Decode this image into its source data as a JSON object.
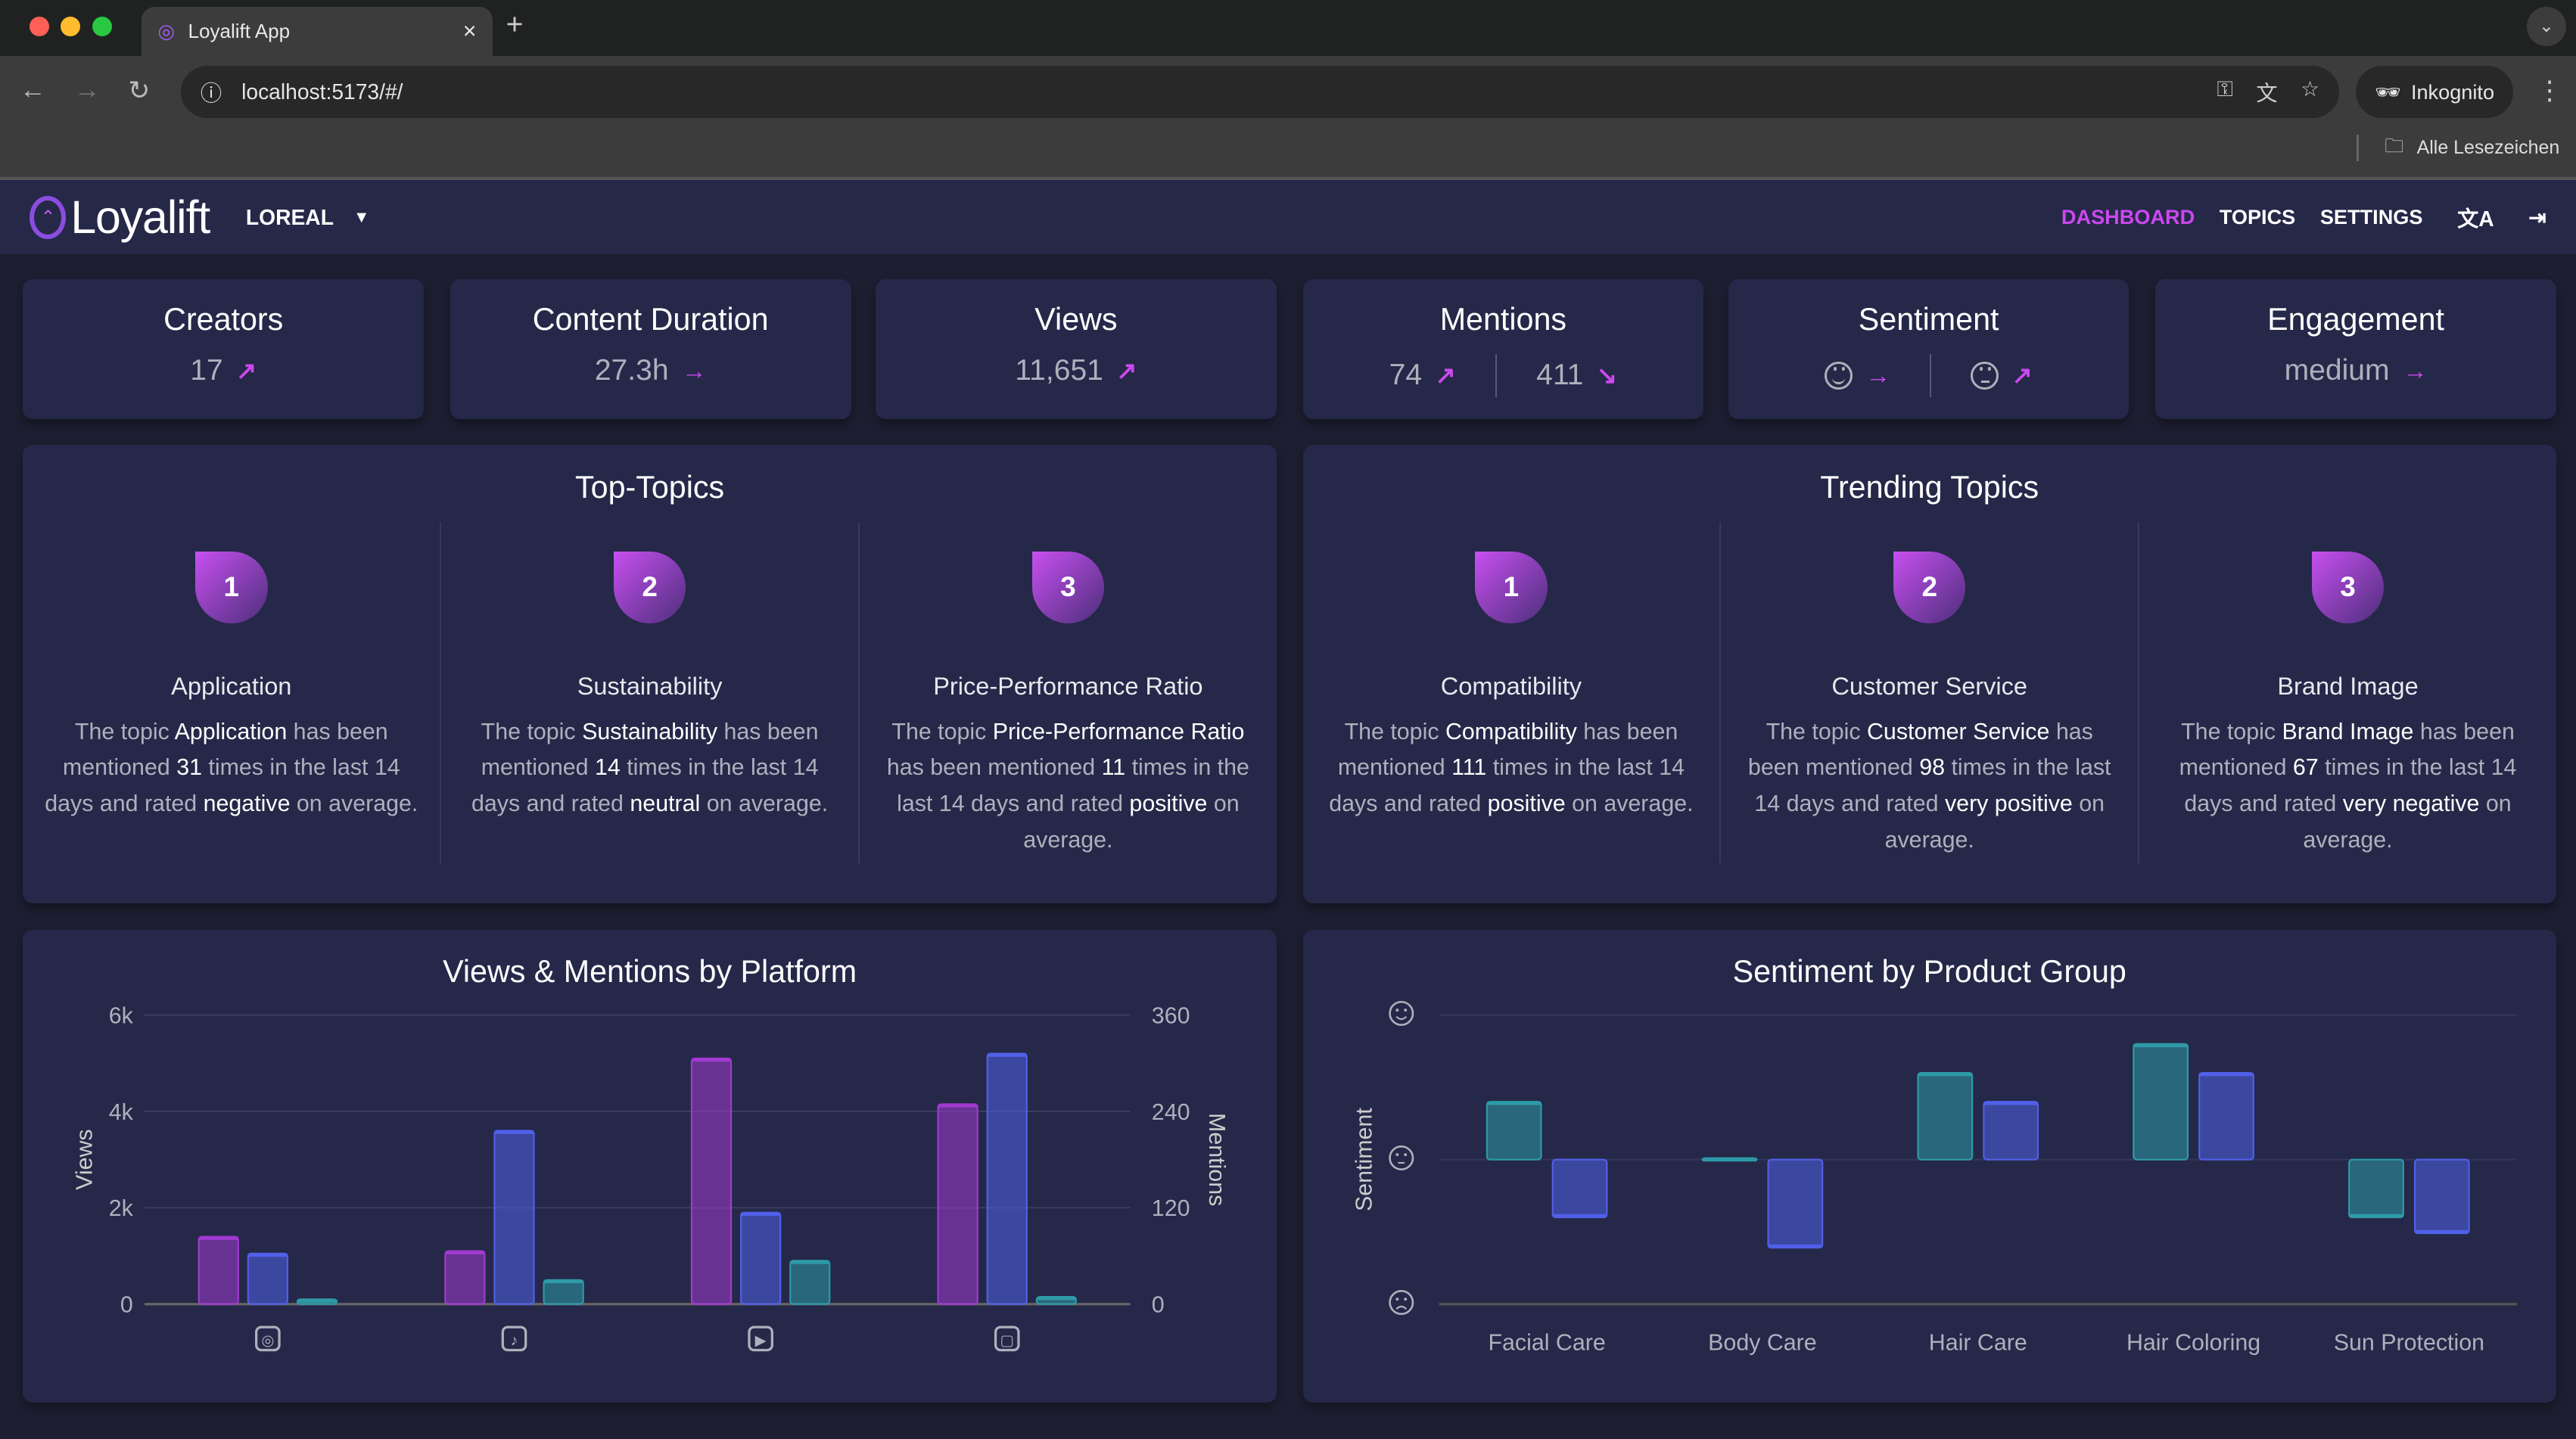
{
  "browser": {
    "tab_title": "Loyalift App",
    "url": "localhost:5173/#/",
    "incognito_label": "Inkognito",
    "bookmarks_label": "Alle Lesezeichen"
  },
  "app": {
    "logo_text": "Loyalift",
    "brand": "LOREAL",
    "nav": [
      {
        "label": "DASHBOARD",
        "active": true
      },
      {
        "label": "TOPICS",
        "active": false
      },
      {
        "label": "SETTINGS",
        "active": false
      }
    ],
    "accent_color": "#cc48ef"
  },
  "stats": {
    "creators": {
      "title": "Creators",
      "value": "17",
      "trend": "up"
    },
    "duration": {
      "title": "Content Duration",
      "value": "27.3h",
      "trend": "flat"
    },
    "views": {
      "title": "Views",
      "value": "11,651",
      "trend": "up"
    },
    "mentions": {
      "title": "Mentions",
      "value_a": "74",
      "trend_a": "up",
      "value_b": "411",
      "trend_b": "down"
    },
    "sentiment": {
      "title": "Sentiment",
      "face_a": "happy",
      "trend_a": "flat",
      "face_b": "neutral",
      "trend_b": "up"
    },
    "engagement": {
      "title": "Engagement",
      "value": "medium",
      "trend": "flat"
    }
  },
  "top_topics": {
    "title": "Top-Topics",
    "items": [
      {
        "rank": "1",
        "name": "Application",
        "parts": [
          "The topic ",
          "Application",
          " has been mentioned ",
          "31",
          " times in the last 14 days and rated ",
          "negative",
          " on average."
        ]
      },
      {
        "rank": "2",
        "name": "Sustainability",
        "parts": [
          "The topic ",
          "Sustainability",
          " has been mentioned ",
          "14",
          " times in the last 14 days and rated ",
          "neutral",
          " on average."
        ]
      },
      {
        "rank": "3",
        "name": "Price-Performance Ratio",
        "parts": [
          "The topic ",
          "Price-Performance Ratio",
          " has been mentioned ",
          "11",
          " times in the last 14 days and rated ",
          "positive",
          " on average."
        ]
      }
    ]
  },
  "trending_topics": {
    "title": "Trending Topics",
    "items": [
      {
        "rank": "1",
        "name": "Compatibility",
        "parts": [
          "The topic ",
          "Compatibility",
          " has been mentioned ",
          "111",
          " times in the last 14 days and rated ",
          "positive",
          " on average."
        ]
      },
      {
        "rank": "2",
        "name": "Customer Service",
        "parts": [
          "The topic ",
          "Customer Service",
          " has been mentioned ",
          "98",
          " times in the last 14 days and rated ",
          "very positive",
          " on average."
        ]
      },
      {
        "rank": "3",
        "name": "Brand Image",
        "parts": [
          "The topic ",
          "Brand Image",
          " has been mentioned ",
          "67",
          " times in the last 14 days and rated ",
          "very negative",
          " on average."
        ]
      }
    ]
  },
  "chart_data": [
    {
      "type": "bar",
      "title": "Views & Mentions by Platform",
      "ylabel": "Views",
      "ylabel_right": "Mentions",
      "categories": [
        "instagram",
        "tiktok",
        "youtube",
        "twitch"
      ],
      "category_icons": [
        "instagram-icon",
        "tiktok-icon",
        "youtube-icon",
        "twitch-icon"
      ],
      "ylim": [
        0,
        6000
      ],
      "yticks": [
        "0",
        "2k",
        "4k",
        "6k"
      ],
      "ylim_right": [
        0,
        360
      ],
      "yticks_right": [
        "0",
        "120",
        "240",
        "360"
      ],
      "grid": true,
      "series": [
        {
          "color": "#a03ad0",
          "values": [
            1400,
            1100,
            5100,
            4150
          ]
        },
        {
          "color": "#5060e8",
          "values": [
            1050,
            3600,
            1900,
            5200
          ]
        },
        {
          "color": "#2e9aa8",
          "values": [
            100,
            500,
            900,
            150
          ]
        }
      ]
    },
    {
      "type": "bar",
      "title": "Sentiment by Product Group",
      "ylabel": "Sentiment",
      "categories": [
        "Facial Care",
        "Body Care",
        "Hair Care",
        "Hair Coloring",
        "Sun Protection"
      ],
      "ylim": [
        -1,
        1
      ],
      "ytick_icons": [
        "sad",
        "neutral",
        "happy"
      ],
      "grid": true,
      "series": [
        {
          "color": "#2e9aa8",
          "values": [
            0.4,
            0.01,
            0.6,
            0.8,
            -0.4
          ]
        },
        {
          "color": "#5060e8",
          "values": [
            -0.4,
            -0.61,
            0.4,
            0.6,
            -0.51
          ]
        }
      ]
    }
  ]
}
